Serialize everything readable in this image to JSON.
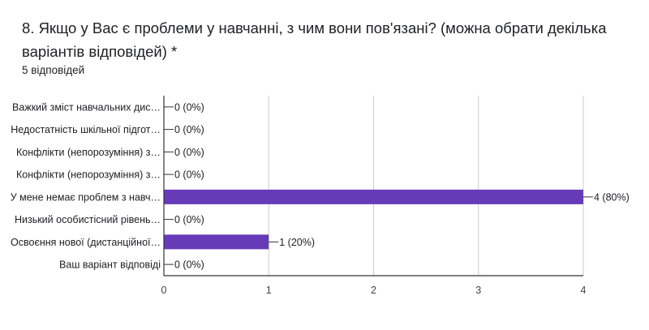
{
  "question": {
    "title": "8. Якщо у Вас є проблеми у навчанні, з чим вони пов'язані? (можна обрати декілька варіантів відповідей) *",
    "responses": "5 відповідей"
  },
  "colors": {
    "bar": "#673ab7",
    "axis": "#333333",
    "grid": "#cccccc"
  },
  "chart_data": {
    "type": "bar",
    "orientation": "horizontal",
    "categories": [
      "Важкий зміст навчальних дис…",
      "Недостатність шкільної підгот…",
      "Конфлікти (непорозуміння) з…",
      "Конфлікти (непорозуміння) з…",
      "У мене немає проблем з навч…",
      "Низький особистісний рівень…",
      "Освоєння нової (дистанційної…",
      "Ваш варіант відповіді"
    ],
    "values": [
      0,
      0,
      0,
      0,
      4,
      0,
      1,
      0
    ],
    "value_labels": [
      "0 (0%)",
      "0 (0%)",
      "0 (0%)",
      "0 (0%)",
      "4 (80%)",
      "0 (0%)",
      "1 (20%)",
      "0 (0%)"
    ],
    "xlim": [
      0,
      4
    ],
    "xticks": [
      "0",
      "1",
      "2",
      "3",
      "4"
    ],
    "grid": true
  }
}
